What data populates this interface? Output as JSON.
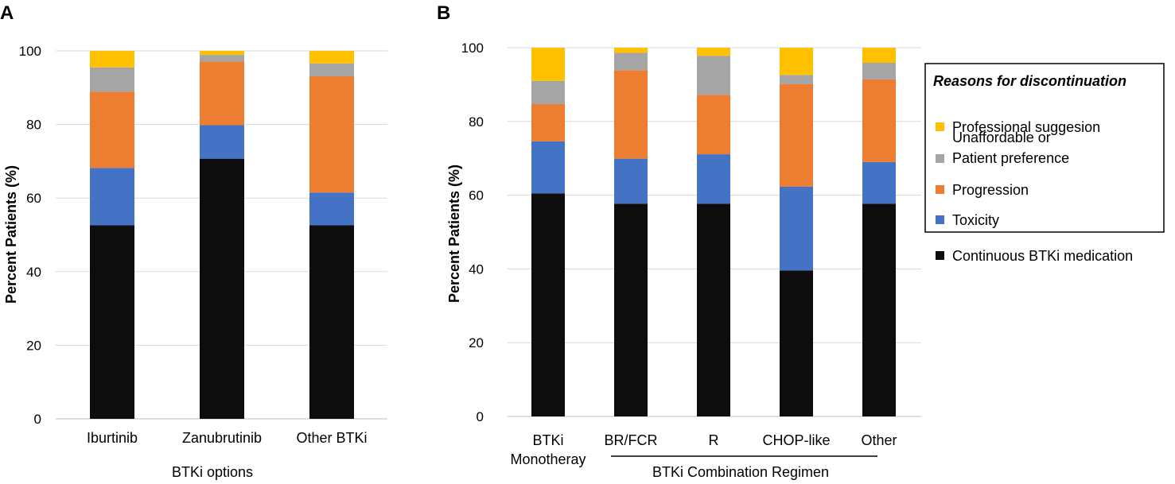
{
  "chart_data": [
    {
      "panel_label": "A",
      "type": "bar",
      "stacked": true,
      "categories": [
        "Iburtinib",
        "Zanubrutinib",
        "Other BTKi"
      ],
      "xlabel": "BTKi options",
      "ylabel": "Percent Patients (%)",
      "ylim": [
        0,
        100
      ],
      "yticks": [
        0,
        20,
        40,
        60,
        80,
        100
      ],
      "grid": true,
      "series": [
        {
          "name": "Continuous BTKi medication",
          "color": "#0d0d0d",
          "values": [
            52.6,
            70.7,
            52.6
          ]
        },
        {
          "name": "Toxicity",
          "color": "#4472c4",
          "values": [
            15.6,
            9.1,
            8.9
          ]
        },
        {
          "name": "Progression",
          "color": "#ed7d31",
          "values": [
            20.7,
            17.3,
            31.6
          ]
        },
        {
          "name": "Unaffordable or Patient preference",
          "color": "#a5a5a5",
          "values": [
            6.6,
            1.8,
            3.5
          ]
        },
        {
          "name": "Professional suggesion",
          "color": "#ffc000",
          "values": [
            4.5,
            1.1,
            3.4
          ]
        }
      ]
    },
    {
      "panel_label": "B",
      "type": "bar",
      "stacked": true,
      "categories": [
        "BTKi Monotheray",
        "BR/FCR",
        "R",
        "CHOP-like",
        "Other"
      ],
      "xlabel": "BTKi Combination Regimen",
      "ylabel": "Percent Patients (%)",
      "ylim": [
        0,
        100
      ],
      "yticks": [
        0,
        20,
        40,
        60,
        80,
        100
      ],
      "grid": true,
      "series": [
        {
          "name": "Continuous BTKi medication",
          "color": "#0d0d0d",
          "values": [
            60.5,
            57.7,
            57.7,
            39.6,
            57.7
          ]
        },
        {
          "name": "Toxicity",
          "color": "#4472c4",
          "values": [
            14.1,
            12.2,
            13.4,
            22.7,
            11.3
          ]
        },
        {
          "name": "Progression",
          "color": "#ed7d31",
          "values": [
            10.1,
            24.0,
            16.1,
            27.8,
            22.4
          ]
        },
        {
          "name": "Unaffordable or Patient preference",
          "color": "#a5a5a5",
          "values": [
            6.3,
            4.7,
            10.6,
            2.5,
            4.5
          ]
        },
        {
          "name": "Professional suggesion",
          "color": "#ffc000",
          "values": [
            9.0,
            1.4,
            2.2,
            7.4,
            4.1
          ]
        }
      ]
    }
  ],
  "legend": {
    "title": "Reasons for discontinuation",
    "items": [
      {
        "label": "Professional suggesion",
        "color": "#ffc000"
      },
      {
        "label": "Unaffordable or",
        "label2": "Patient preference",
        "color": "#a5a5a5"
      },
      {
        "label": "Progression",
        "color": "#ed7d31"
      },
      {
        "label": "Toxicity",
        "color": "#4472c4"
      }
    ],
    "outside_item": {
      "label": "Continuous BTKi medication",
      "color": "#0d0d0d"
    }
  }
}
